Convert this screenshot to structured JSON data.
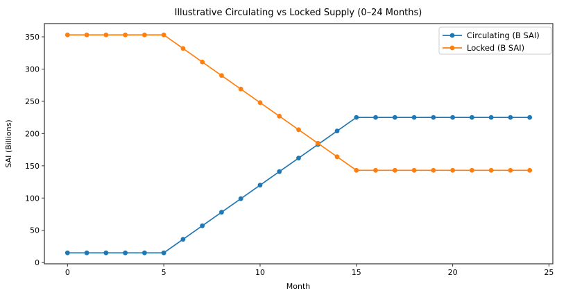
{
  "figure": {
    "title": "Illustrative Circulating vs Locked Supply (0–24 Months)"
  },
  "chart_data": {
    "type": "line",
    "title": "Illustrative Circulating vs Locked Supply (0–24 Months)",
    "xlabel": "Month",
    "ylabel": "SAI (Billions)",
    "x": [
      0,
      1,
      2,
      3,
      4,
      5,
      6,
      7,
      8,
      9,
      10,
      11,
      12,
      13,
      14,
      15,
      16,
      17,
      18,
      19,
      20,
      21,
      22,
      23,
      24
    ],
    "series": [
      {
        "name": "Circulating (B SAI)",
        "color": "#1f77b4",
        "marker": "circle",
        "values": [
          15,
          15,
          15,
          15,
          15,
          15,
          36,
          57,
          78,
          99,
          120,
          141,
          162,
          183,
          204,
          225,
          225,
          225,
          225,
          225,
          225,
          225,
          225,
          225,
          225
        ]
      },
      {
        "name": "Locked (B SAI)",
        "color": "#ff7f0e",
        "marker": "circle",
        "values": [
          353,
          353,
          353,
          353,
          353,
          353,
          332,
          311,
          290,
          269,
          248,
          227,
          206,
          185,
          164,
          143,
          143,
          143,
          143,
          143,
          143,
          143,
          143,
          143,
          143
        ]
      }
    ],
    "xlim": [
      -1.2,
      25.2
    ],
    "ylim": [
      -2,
      370.5
    ],
    "xticks": [
      0,
      5,
      10,
      15,
      20,
      25
    ],
    "yticks": [
      0,
      50,
      100,
      150,
      200,
      250,
      300,
      350
    ],
    "grid": false,
    "legend": {
      "position": "upper right"
    },
    "colors": {
      "spine": "#404040",
      "tick": "#333333",
      "legend_border": "#cccccc",
      "background": "#ffffff"
    }
  }
}
